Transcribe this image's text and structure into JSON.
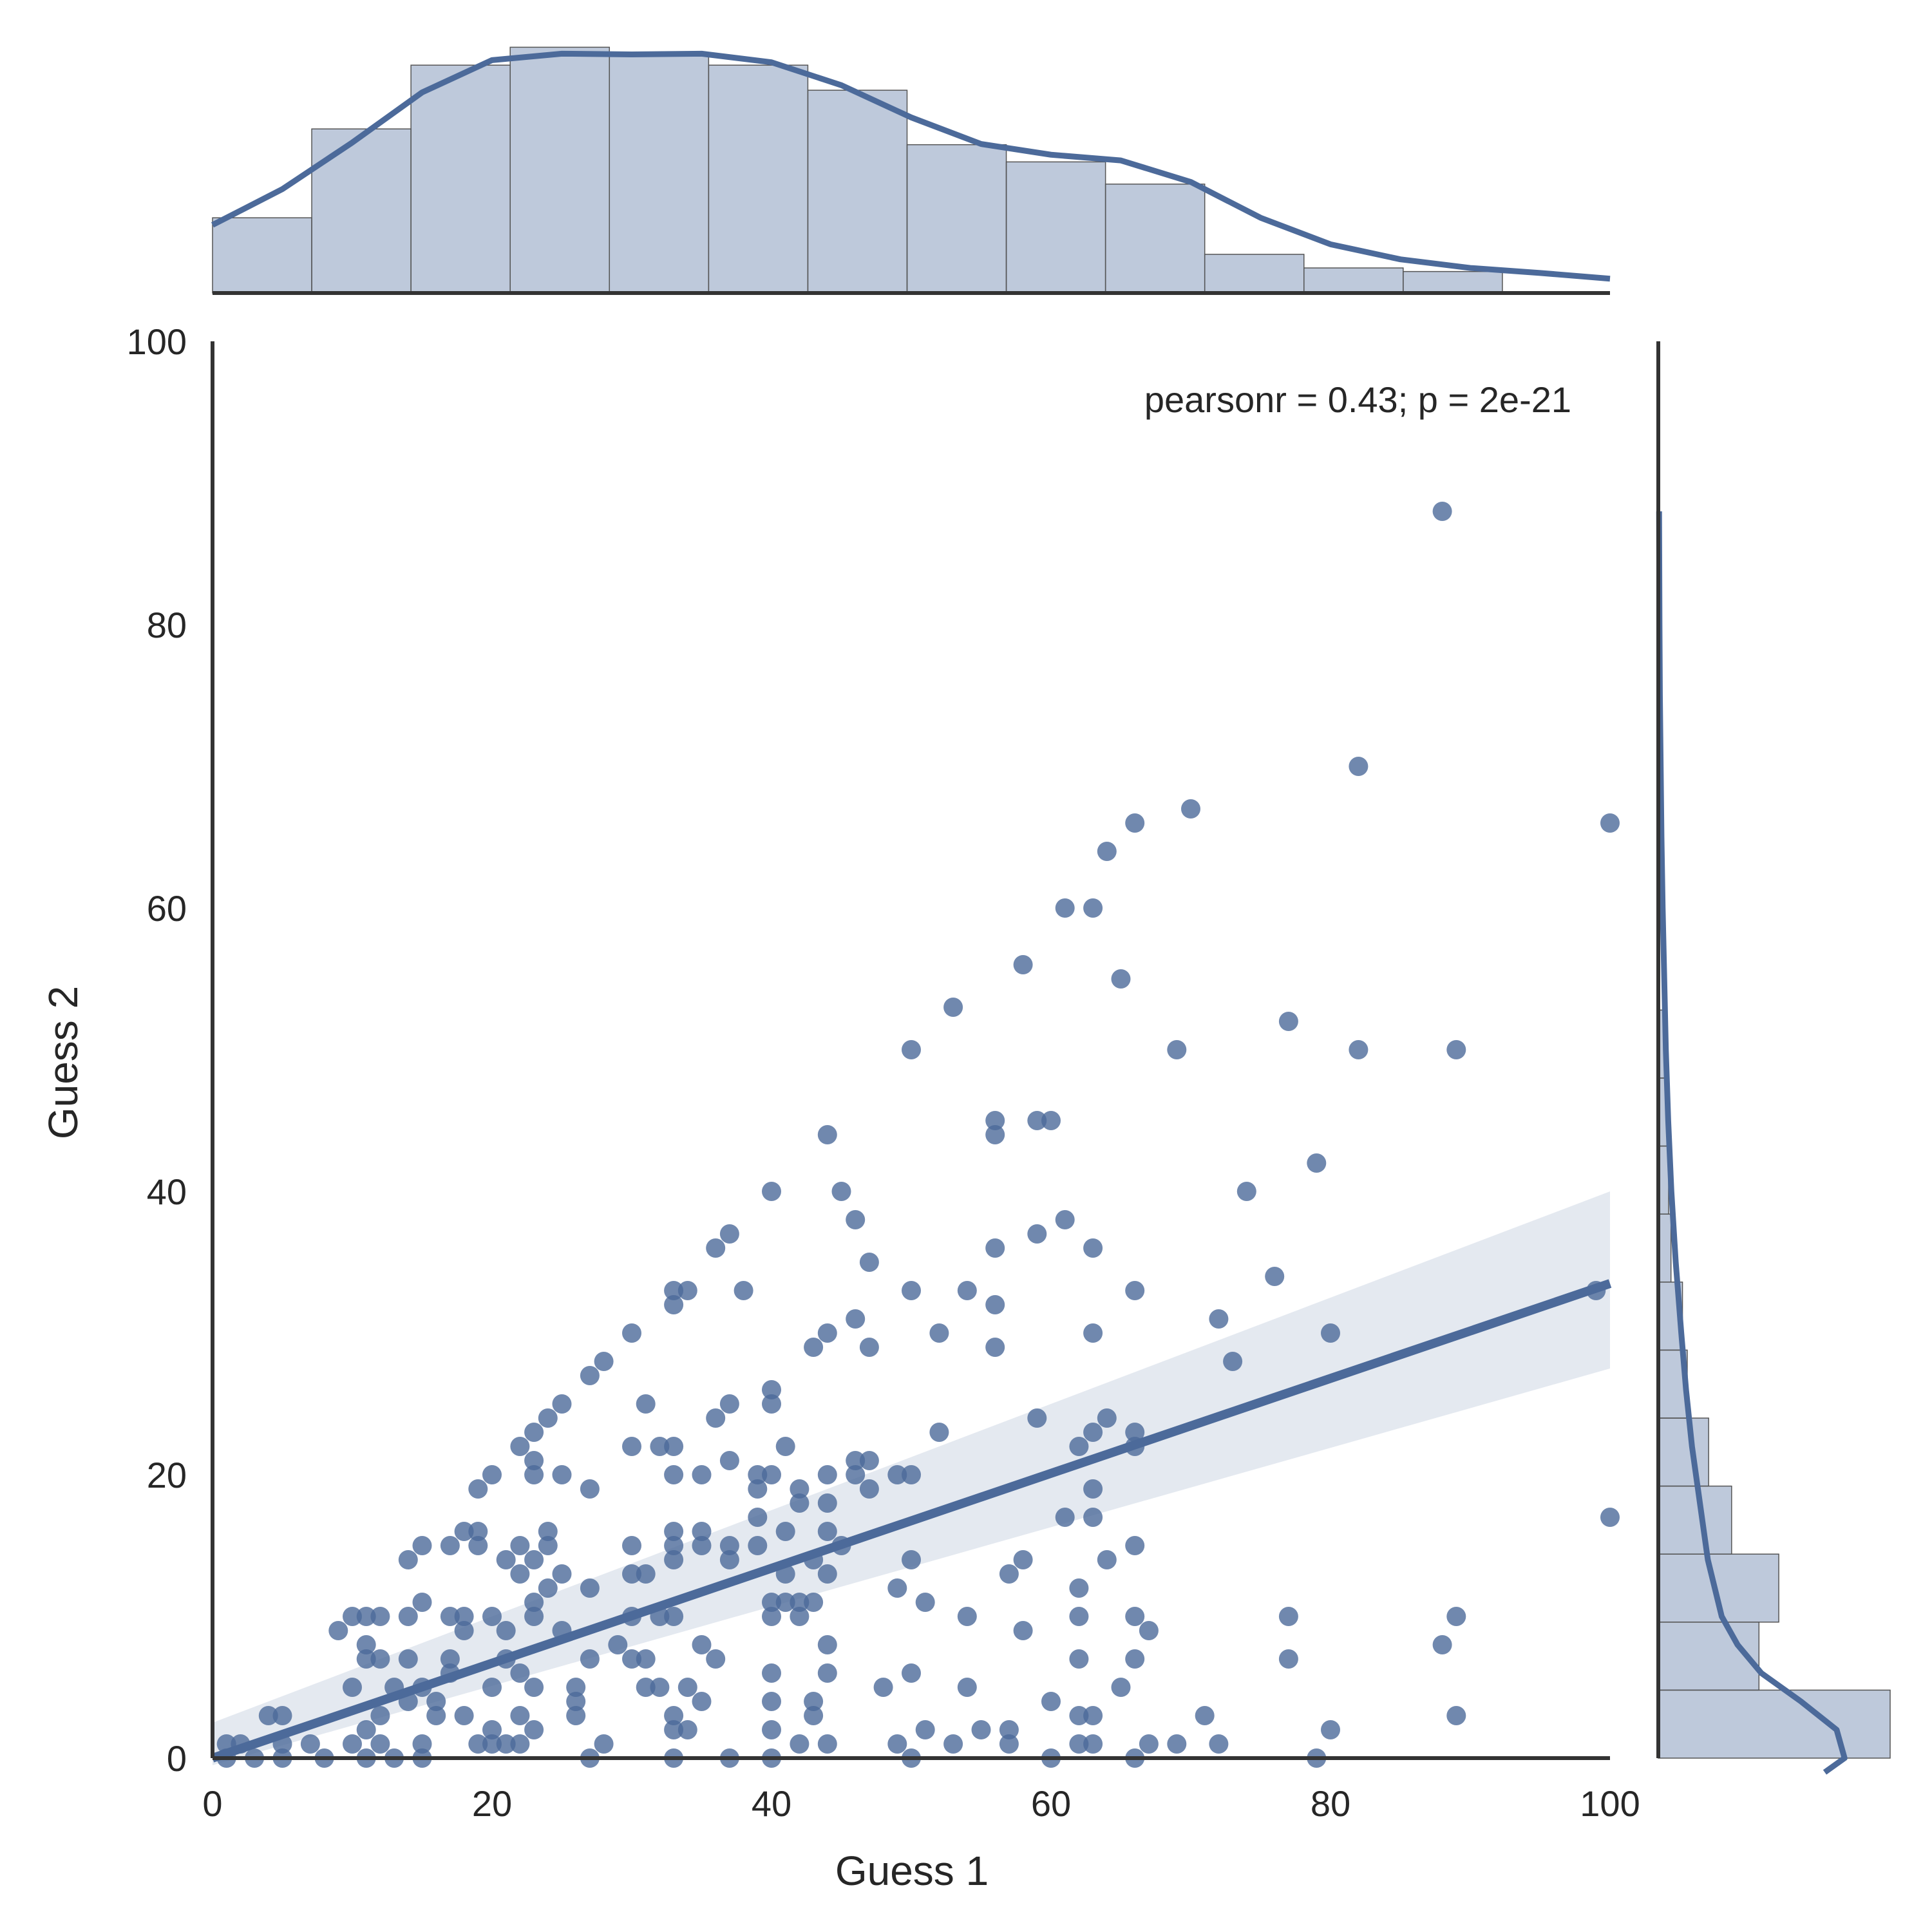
{
  "chart_data": {
    "type": "scatter",
    "xlabel": "Guess 1",
    "ylabel": "Guess 2",
    "xlim": [
      0,
      100
    ],
    "ylim": [
      0,
      100
    ],
    "xticks": [
      0,
      20,
      40,
      60,
      80,
      100
    ],
    "yticks": [
      0,
      20,
      40,
      60,
      80,
      100
    ],
    "annotation": "pearsonr = 0.43; p = 2e-21",
    "grid": false,
    "color": "#4c6a9a",
    "regression": {
      "x": [
        0,
        100
      ],
      "y": [
        0,
        33.5
      ],
      "ci_upper": [
        2.5,
        40
      ],
      "ci_lower": [
        -2,
        27.5
      ]
    },
    "points": [
      [
        1,
        0
      ],
      [
        1,
        1
      ],
      [
        2,
        1
      ],
      [
        3,
        0
      ],
      [
        4,
        3
      ],
      [
        5,
        3
      ],
      [
        5,
        0
      ],
      [
        5,
        1
      ],
      [
        7,
        1
      ],
      [
        8,
        0
      ],
      [
        9,
        9
      ],
      [
        10,
        10
      ],
      [
        10,
        5
      ],
      [
        10,
        1
      ],
      [
        11,
        10
      ],
      [
        11,
        8
      ],
      [
        11,
        7
      ],
      [
        11,
        2
      ],
      [
        11,
        0
      ],
      [
        12,
        10
      ],
      [
        12,
        3
      ],
      [
        12,
        7
      ],
      [
        12,
        1
      ],
      [
        13,
        5
      ],
      [
        13,
        0
      ],
      [
        14,
        14
      ],
      [
        14,
        10
      ],
      [
        14,
        7
      ],
      [
        14,
        4
      ],
      [
        15,
        15
      ],
      [
        15,
        11
      ],
      [
        15,
        5
      ],
      [
        15,
        1
      ],
      [
        15,
        0
      ],
      [
        16,
        4
      ],
      [
        16,
        3
      ],
      [
        17,
        15
      ],
      [
        17,
        10
      ],
      [
        17,
        7
      ],
      [
        17,
        6
      ],
      [
        18,
        16
      ],
      [
        18,
        10
      ],
      [
        18,
        9
      ],
      [
        18,
        3
      ],
      [
        19,
        19
      ],
      [
        19,
        16
      ],
      [
        19,
        15
      ],
      [
        19,
        1
      ],
      [
        20,
        20
      ],
      [
        20,
        10
      ],
      [
        20,
        5
      ],
      [
        20,
        2
      ],
      [
        20,
        1
      ],
      [
        21,
        14
      ],
      [
        21,
        9
      ],
      [
        21,
        7
      ],
      [
        21,
        1
      ],
      [
        22,
        22
      ],
      [
        22,
        15
      ],
      [
        22,
        13
      ],
      [
        22,
        6
      ],
      [
        22,
        3
      ],
      [
        22,
        1
      ],
      [
        23,
        23
      ],
      [
        23,
        21
      ],
      [
        23,
        20
      ],
      [
        23,
        14
      ],
      [
        23,
        11
      ],
      [
        23,
        10
      ],
      [
        23,
        5
      ],
      [
        23,
        2
      ],
      [
        24,
        24
      ],
      [
        24,
        16
      ],
      [
        24,
        15
      ],
      [
        24,
        12
      ],
      [
        25,
        25
      ],
      [
        25,
        20
      ],
      [
        25,
        13
      ],
      [
        25,
        9
      ],
      [
        26,
        5
      ],
      [
        26,
        4
      ],
      [
        26,
        3
      ],
      [
        27,
        27
      ],
      [
        27,
        19
      ],
      [
        27,
        12
      ],
      [
        27,
        7
      ],
      [
        27,
        0
      ],
      [
        28,
        28
      ],
      [
        28,
        1
      ],
      [
        29,
        8
      ],
      [
        30,
        30
      ],
      [
        30,
        22
      ],
      [
        30,
        15
      ],
      [
        30,
        13
      ],
      [
        30,
        10
      ],
      [
        30,
        7
      ],
      [
        31,
        25
      ],
      [
        31,
        13
      ],
      [
        31,
        7
      ],
      [
        31,
        5
      ],
      [
        32,
        22
      ],
      [
        32,
        10
      ],
      [
        32,
        5
      ],
      [
        33,
        33
      ],
      [
        33,
        32
      ],
      [
        33,
        22
      ],
      [
        33,
        20
      ],
      [
        33,
        16
      ],
      [
        33,
        15
      ],
      [
        33,
        14
      ],
      [
        33,
        10
      ],
      [
        33,
        3
      ],
      [
        33,
        2
      ],
      [
        33,
        0
      ],
      [
        34,
        33
      ],
      [
        34,
        5
      ],
      [
        34,
        2
      ],
      [
        35,
        20
      ],
      [
        35,
        16
      ],
      [
        35,
        15
      ],
      [
        35,
        8
      ],
      [
        35,
        4
      ],
      [
        36,
        36
      ],
      [
        36,
        24
      ],
      [
        36,
        7
      ],
      [
        37,
        37
      ],
      [
        37,
        25
      ],
      [
        37,
        21
      ],
      [
        37,
        15
      ],
      [
        37,
        14
      ],
      [
        37,
        0
      ],
      [
        38,
        33
      ],
      [
        39,
        20
      ],
      [
        39,
        19
      ],
      [
        39,
        17
      ],
      [
        39,
        15
      ],
      [
        40,
        40
      ],
      [
        40,
        26
      ],
      [
        40,
        25
      ],
      [
        40,
        20
      ],
      [
        40,
        11
      ],
      [
        40,
        10
      ],
      [
        40,
        6
      ],
      [
        40,
        4
      ],
      [
        40,
        2
      ],
      [
        40,
        0
      ],
      [
        41,
        22
      ],
      [
        41,
        16
      ],
      [
        41,
        13
      ],
      [
        41,
        11
      ],
      [
        42,
        19
      ],
      [
        42,
        18
      ],
      [
        42,
        11
      ],
      [
        42,
        10
      ],
      [
        42,
        1
      ],
      [
        43,
        29
      ],
      [
        43,
        14
      ],
      [
        43,
        11
      ],
      [
        43,
        4
      ],
      [
        43,
        3
      ],
      [
        44,
        44
      ],
      [
        44,
        30
      ],
      [
        44,
        20
      ],
      [
        44,
        18
      ],
      [
        44,
        16
      ],
      [
        44,
        13
      ],
      [
        44,
        8
      ],
      [
        44,
        6
      ],
      [
        44,
        1
      ],
      [
        45,
        40
      ],
      [
        45,
        15
      ],
      [
        46,
        38
      ],
      [
        46,
        31
      ],
      [
        46,
        21
      ],
      [
        46,
        20
      ],
      [
        47,
        35
      ],
      [
        47,
        29
      ],
      [
        47,
        21
      ],
      [
        47,
        19
      ],
      [
        48,
        5
      ],
      [
        49,
        20
      ],
      [
        49,
        12
      ],
      [
        49,
        1
      ],
      [
        50,
        50
      ],
      [
        50,
        33
      ],
      [
        50,
        20
      ],
      [
        50,
        14
      ],
      [
        50,
        6
      ],
      [
        50,
        0
      ],
      [
        51,
        11
      ],
      [
        51,
        2
      ],
      [
        52,
        30
      ],
      [
        52,
        23
      ],
      [
        53,
        53
      ],
      [
        53,
        1
      ],
      [
        54,
        33
      ],
      [
        54,
        10
      ],
      [
        54,
        5
      ],
      [
        55,
        2
      ],
      [
        56,
        45
      ],
      [
        56,
        44
      ],
      [
        56,
        36
      ],
      [
        56,
        32
      ],
      [
        56,
        29
      ],
      [
        57,
        13
      ],
      [
        57,
        2
      ],
      [
        57,
        1
      ],
      [
        58,
        56
      ],
      [
        58,
        14
      ],
      [
        58,
        9
      ],
      [
        59,
        45
      ],
      [
        59,
        37
      ],
      [
        59,
        24
      ],
      [
        60,
        45
      ],
      [
        60,
        4
      ],
      [
        60,
        0
      ],
      [
        61,
        60
      ],
      [
        61,
        38
      ],
      [
        61,
        17
      ],
      [
        62,
        22
      ],
      [
        62,
        12
      ],
      [
        62,
        10
      ],
      [
        62,
        7
      ],
      [
        62,
        3
      ],
      [
        62,
        1
      ],
      [
        63,
        60
      ],
      [
        63,
        36
      ],
      [
        63,
        30
      ],
      [
        63,
        23
      ],
      [
        63,
        19
      ],
      [
        63,
        17
      ],
      [
        63,
        3
      ],
      [
        63,
        1
      ],
      [
        64,
        64
      ],
      [
        64,
        24
      ],
      [
        64,
        14
      ],
      [
        65,
        55
      ],
      [
        65,
        5
      ],
      [
        66,
        66
      ],
      [
        66,
        33
      ],
      [
        66,
        23
      ],
      [
        66,
        22
      ],
      [
        66,
        15
      ],
      [
        66,
        10
      ],
      [
        66,
        7
      ],
      [
        66,
        0
      ],
      [
        67,
        9
      ],
      [
        67,
        1
      ],
      [
        69,
        50
      ],
      [
        69,
        1
      ],
      [
        70,
        67
      ],
      [
        71,
        3
      ],
      [
        72,
        31
      ],
      [
        72,
        1
      ],
      [
        73,
        28
      ],
      [
        74,
        40
      ],
      [
        76,
        34
      ],
      [
        77,
        52
      ],
      [
        77,
        10
      ],
      [
        77,
        7
      ],
      [
        79,
        42
      ],
      [
        79,
        0
      ],
      [
        80,
        30
      ],
      [
        80,
        2
      ],
      [
        82,
        70
      ],
      [
        82,
        50
      ],
      [
        88,
        88
      ],
      [
        88,
        8
      ],
      [
        89,
        50
      ],
      [
        89,
        10
      ],
      [
        89,
        3
      ],
      [
        99,
        33
      ],
      [
        100,
        66
      ],
      [
        100,
        17
      ]
    ],
    "marginal_x": {
      "bin_edges": [
        0,
        7.1,
        14.2,
        21.3,
        28.4,
        35.5,
        42.6,
        49.7,
        56.8,
        63.9,
        71.0,
        78.1,
        85.2,
        92.3
      ],
      "density": [
        0.0105,
        0.0229,
        0.0318,
        0.0343,
        0.0332,
        0.0318,
        0.0283,
        0.0207,
        0.0183,
        0.0152,
        0.0054,
        0.0035,
        0.003
      ],
      "kde_x": [
        0,
        5,
        10,
        15,
        20,
        25,
        30,
        35,
        40,
        45,
        50,
        55,
        60,
        65,
        70,
        75,
        80,
        85,
        90,
        95,
        100
      ],
      "kde_y": [
        0.0095,
        0.0145,
        0.021,
        0.028,
        0.0325,
        0.0334,
        0.0333,
        0.0334,
        0.0322,
        0.029,
        0.0245,
        0.0208,
        0.0193,
        0.0185,
        0.0155,
        0.0105,
        0.0068,
        0.0047,
        0.0035,
        0.0028,
        0.002
      ]
    },
    "marginal_y": {
      "bin_edges": [
        0,
        4.8,
        9.6,
        14.4,
        19.2,
        24.0,
        28.8,
        33.6,
        38.4,
        43.2,
        48.0,
        52.8
      ],
      "density": [
        0.0585,
        0.0254,
        0.0304,
        0.0185,
        0.0127,
        0.0073,
        0.0061,
        0.0032,
        0.0026,
        0.0022,
        0.0018
      ],
      "kde_y": [
        -1,
        0,
        2,
        4,
        6,
        8,
        10,
        14,
        18,
        22,
        26,
        30,
        35,
        40,
        45,
        50,
        55,
        60,
        65,
        70,
        75,
        80,
        88
      ],
      "kde_x": [
        0.042,
        0.047,
        0.045,
        0.036,
        0.026,
        0.02,
        0.016,
        0.0125,
        0.0105,
        0.0085,
        0.007,
        0.0058,
        0.0044,
        0.0033,
        0.0025,
        0.0019,
        0.0015,
        0.0011,
        0.0008,
        0.0006,
        0.0004,
        0.0003,
        0.0002
      ]
    }
  }
}
